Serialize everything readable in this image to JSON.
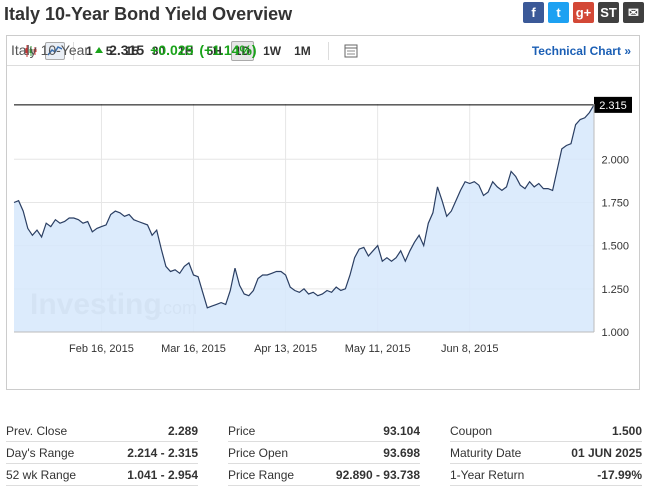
{
  "title": "Italy 10-Year Bond Yield Overview",
  "share": [
    {
      "name": "facebook-icon",
      "glyph": "f",
      "color": "#3b5998"
    },
    {
      "name": "twitter-icon",
      "glyph": "t",
      "color": "#1da1f2"
    },
    {
      "name": "google-plus-icon",
      "glyph": "g+",
      "color": "#d34836"
    },
    {
      "name": "stocktwits-icon",
      "glyph": "ST",
      "color": "#404040"
    },
    {
      "name": "email-icon",
      "glyph": "✉",
      "color": "#404040"
    }
  ],
  "toolbar": {
    "periods": [
      "1",
      "5",
      "15",
      "30",
      "1H",
      "5H",
      "1D",
      "1W",
      "1M"
    ],
    "active_period": "1D",
    "technical_chart": "Technical Chart"
  },
  "quote": {
    "name": "Italy 10-Year",
    "last": "2.315",
    "change": "+0.025",
    "change_pct": "(+1.14%)"
  },
  "watermark": {
    "brand": "Investing",
    "suffix": ".com"
  },
  "chart_data": {
    "type": "area",
    "ylim": [
      1.0,
      2.32
    ],
    "yticks": [
      "1.000",
      "1.250",
      "1.500",
      "1.750",
      "2.000"
    ],
    "ytick_values": [
      1.0,
      1.25,
      1.5,
      1.75,
      2.0
    ],
    "xticks": [
      "Feb 16, 2015",
      "Mar 16, 2015",
      "Apr 13, 2015",
      "May 11, 2015",
      "Jun 8, 2015"
    ],
    "xtick_index": [
      19,
      39,
      59,
      79,
      99
    ],
    "last_label": "2.315",
    "last_value": 2.315,
    "grid": true,
    "values": [
      1.75,
      1.76,
      1.7,
      1.6,
      1.56,
      1.59,
      1.55,
      1.63,
      1.61,
      1.65,
      1.63,
      1.64,
      1.66,
      1.66,
      1.65,
      1.63,
      1.64,
      1.58,
      1.6,
      1.61,
      1.62,
      1.68,
      1.7,
      1.69,
      1.67,
      1.68,
      1.65,
      1.64,
      1.63,
      1.62,
      1.56,
      1.59,
      1.48,
      1.38,
      1.35,
      1.36,
      1.34,
      1.38,
      1.4,
      1.33,
      1.32,
      1.23,
      1.14,
      1.15,
      1.16,
      1.17,
      1.16,
      1.24,
      1.37,
      1.27,
      1.22,
      1.21,
      1.24,
      1.31,
      1.33,
      1.33,
      1.34,
      1.35,
      1.35,
      1.33,
      1.26,
      1.24,
      1.23,
      1.25,
      1.22,
      1.23,
      1.21,
      1.22,
      1.24,
      1.23,
      1.26,
      1.24,
      1.25,
      1.33,
      1.43,
      1.48,
      1.49,
      1.44,
      1.47,
      1.5,
      1.41,
      1.43,
      1.41,
      1.43,
      1.47,
      1.41,
      1.47,
      1.52,
      1.56,
      1.5,
      1.63,
      1.69,
      1.84,
      1.76,
      1.67,
      1.7,
      1.76,
      1.82,
      1.87,
      1.86,
      1.87,
      1.85,
      1.79,
      1.81,
      1.87,
      1.84,
      1.82,
      1.84,
      1.93,
      1.9,
      1.85,
      1.83,
      1.87,
      1.84,
      1.86,
      1.83,
      1.83,
      1.82,
      1.94,
      2.06,
      2.08,
      2.09,
      2.2,
      2.23,
      2.24,
      2.27,
      2.315
    ]
  },
  "stats": [
    [
      {
        "label": "Prev. Close",
        "value": "2.289"
      },
      {
        "label": "Day's Range",
        "value": "2.214 - 2.315"
      },
      {
        "label": "52 wk Range",
        "value": "1.041 - 2.954"
      }
    ],
    [
      {
        "label": "Price",
        "value": "93.104"
      },
      {
        "label": "Price Open",
        "value": "93.698"
      },
      {
        "label": "Price Range",
        "value": "92.890 - 93.738"
      }
    ],
    [
      {
        "label": "Coupon",
        "value": "1.500"
      },
      {
        "label": "Maturity Date",
        "value": "01 JUN 2025"
      },
      {
        "label": "1-Year Return",
        "value": "-17.99%"
      }
    ]
  ]
}
